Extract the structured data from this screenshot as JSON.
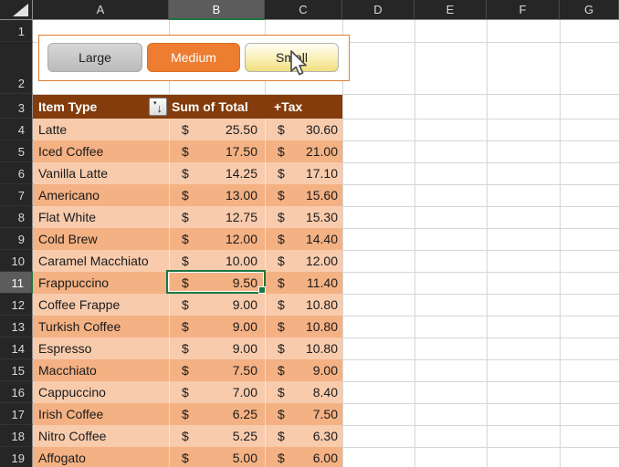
{
  "sheet": {
    "column_headers": [
      "A",
      "B",
      "C",
      "D",
      "E",
      "F",
      "G"
    ],
    "selected_column": "B",
    "row_numbers": [
      "1",
      "2",
      "3",
      "4",
      "5",
      "6",
      "7",
      "8",
      "9",
      "10",
      "11",
      "12",
      "13",
      "14",
      "15",
      "16",
      "17",
      "18",
      "19"
    ],
    "selected_row": "11",
    "selected_cell": "B11"
  },
  "size_selector": {
    "buttons": [
      {
        "label": "Large",
        "state": "default"
      },
      {
        "label": "Medium",
        "state": "selected"
      },
      {
        "label": "Small",
        "state": "hover"
      }
    ]
  },
  "table": {
    "header": {
      "item": "Item Type",
      "total": "Sum of Total",
      "tax": "+Tax"
    },
    "filter_button": {
      "icon": "sort-filter-icon",
      "dropdown_glyph": "▾",
      "arrow_glyph": "↓"
    },
    "currency": "$",
    "rows": [
      {
        "row": "4",
        "item": "Latte",
        "total": "25.50",
        "tax": "30.60"
      },
      {
        "row": "5",
        "item": "Iced Coffee",
        "total": "17.50",
        "tax": "21.00"
      },
      {
        "row": "6",
        "item": "Vanilla Latte",
        "total": "14.25",
        "tax": "17.10"
      },
      {
        "row": "7",
        "item": "Americano",
        "total": "13.00",
        "tax": "15.60"
      },
      {
        "row": "8",
        "item": "Flat White",
        "total": "12.75",
        "tax": "15.30"
      },
      {
        "row": "9",
        "item": "Cold Brew",
        "total": "12.00",
        "tax": "14.40"
      },
      {
        "row": "10",
        "item": "Caramel Macchiato",
        "total": "10.00",
        "tax": "12.00"
      },
      {
        "row": "11",
        "item": "Frappuccino",
        "total": "9.50",
        "tax": "11.40"
      },
      {
        "row": "12",
        "item": "Coffee Frappe",
        "total": "9.00",
        "tax": "10.80"
      },
      {
        "row": "13",
        "item": "Turkish Coffee",
        "total": "9.00",
        "tax": "10.80"
      },
      {
        "row": "14",
        "item": "Espresso",
        "total": "9.00",
        "tax": "10.80"
      },
      {
        "row": "15",
        "item": "Macchiato",
        "total": "7.50",
        "tax": "9.00"
      },
      {
        "row": "16",
        "item": "Cappuccino",
        "total": "7.00",
        "tax": "8.40"
      },
      {
        "row": "17",
        "item": "Irish Coffee",
        "total": "6.25",
        "tax": "7.50"
      },
      {
        "row": "18",
        "item": "Nitro Coffee",
        "total": "5.25",
        "tax": "6.30"
      },
      {
        "row": "19",
        "item": "Affogato",
        "total": "5.00",
        "tax": "6.00"
      }
    ]
  },
  "colors": {
    "header_fill": "#843C0C",
    "band_light": "#F8CBAD",
    "band_dark": "#F4B183",
    "accent_orange": "#ED7D31",
    "selection_green": "#1B7742",
    "gridline": "#D6D6D6"
  }
}
